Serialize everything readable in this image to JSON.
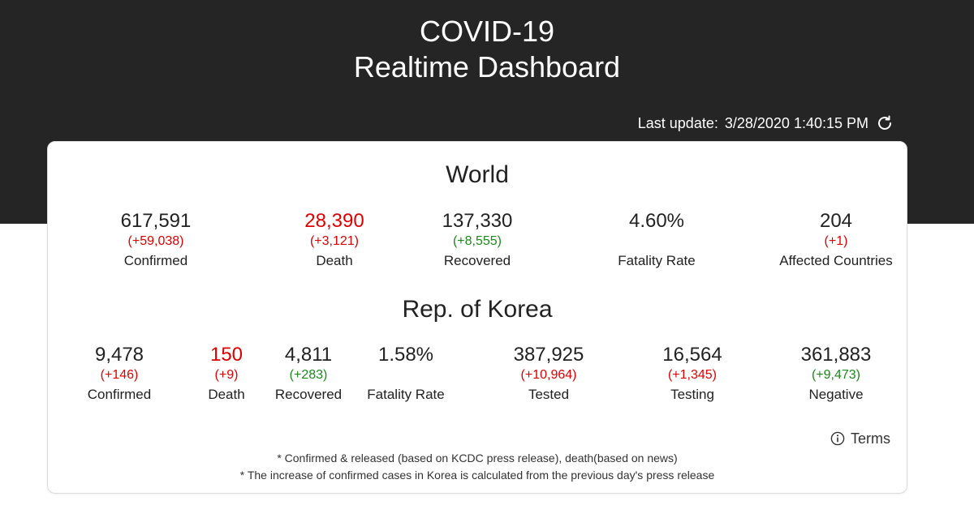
{
  "header": {
    "title_line1": "COVID-19",
    "title_line2": "Realtime Dashboard",
    "last_update_label": "Last update:",
    "last_update_value": "3/28/2020 1:40:15 PM",
    "refresh_icon": "refresh-icon"
  },
  "world": {
    "title": "World",
    "stats": [
      {
        "value": "617,591",
        "delta": "(+59,038)",
        "label": "Confirmed",
        "value_color": "default",
        "delta_color": "red"
      },
      {
        "value": "28,390",
        "delta": "(+3,121)",
        "label": "Death",
        "value_color": "red",
        "delta_color": "red"
      },
      {
        "value": "137,330",
        "delta": "(+8,555)",
        "label": "Recovered",
        "value_color": "default",
        "delta_color": "green"
      },
      {
        "value": "4.60%",
        "delta": "",
        "label": "Fatality Rate",
        "value_color": "default",
        "delta_color": "none"
      },
      {
        "value": "204",
        "delta": "(+1)",
        "label": "Affected Countries",
        "value_color": "default",
        "delta_color": "red"
      }
    ]
  },
  "korea": {
    "title": "Rep. of Korea",
    "stats": [
      {
        "value": "9,478",
        "delta": "(+146)",
        "label": "Confirmed",
        "value_color": "default",
        "delta_color": "red"
      },
      {
        "value": "150",
        "delta": "(+9)",
        "label": "Death",
        "value_color": "red",
        "delta_color": "red"
      },
      {
        "value": "4,811",
        "delta": "(+283)",
        "label": "Recovered",
        "value_color": "default",
        "delta_color": "green"
      },
      {
        "value": "1.58%",
        "delta": "",
        "label": "Fatality Rate",
        "value_color": "default",
        "delta_color": "none"
      },
      {
        "value": "387,925",
        "delta": "(+10,964)",
        "label": "Tested",
        "value_color": "default",
        "delta_color": "red"
      },
      {
        "value": "16,564",
        "delta": "(+1,345)",
        "label": "Testing",
        "value_color": "default",
        "delta_color": "red"
      },
      {
        "value": "361,883",
        "delta": "(+9,473)",
        "label": "Negative",
        "value_color": "default",
        "delta_color": "green"
      }
    ]
  },
  "terms": {
    "label": "Terms",
    "icon": "info-icon"
  },
  "footnotes": [
    "* Confirmed & released (based on KCDC press release), death(based on news)",
    "* The increase of confirmed cases in Korea is calculated from the previous day's press release"
  ],
  "colors": {
    "header_bg": "#252525",
    "red": "#e00000",
    "green": "#1a8a1a",
    "text": "#222222"
  }
}
